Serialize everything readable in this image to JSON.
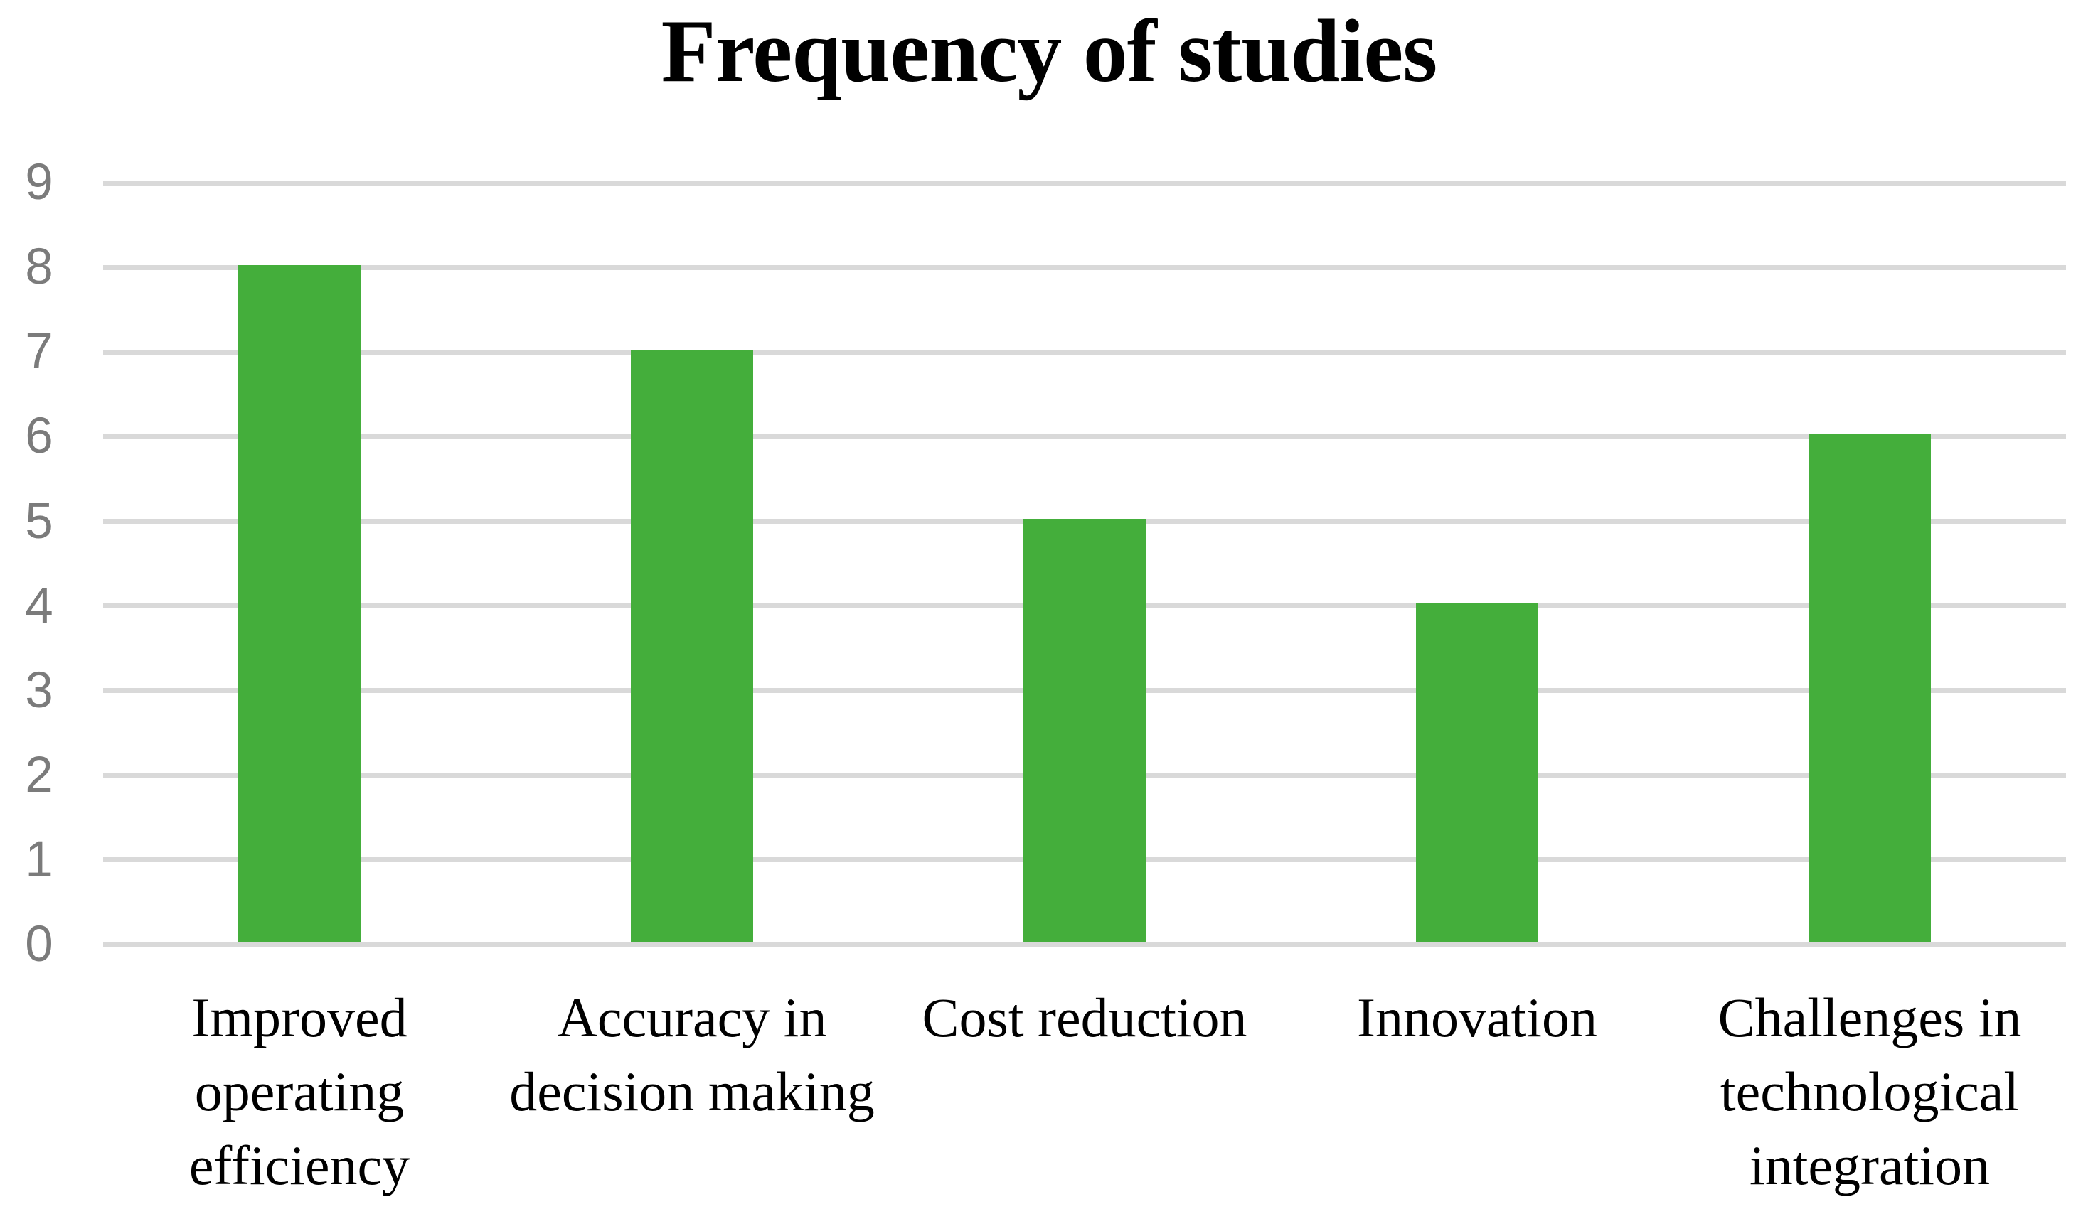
{
  "chart_data": {
    "type": "bar",
    "title": "Frequency of studies",
    "categories": [
      "Improved operating efficiency",
      "Accuracy in decision making",
      "Cost reduction",
      "Innovation",
      "Challenges in technological integration"
    ],
    "values": [
      8,
      7,
      5,
      4,
      6
    ],
    "xlabel": "",
    "ylabel": "",
    "ylim": [
      0,
      9
    ],
    "yticks": [
      0,
      1,
      2,
      3,
      4,
      5,
      6,
      7,
      8,
      9
    ],
    "grid": "horizontal",
    "legend_position": "none",
    "colors": {
      "bar": "#44AE3B",
      "gridline": "#D9D9D9",
      "ytick_text": "#7B7B7B",
      "title_text": "#000000",
      "xtick_text": "#000000",
      "background": "#FFFFFF"
    }
  }
}
